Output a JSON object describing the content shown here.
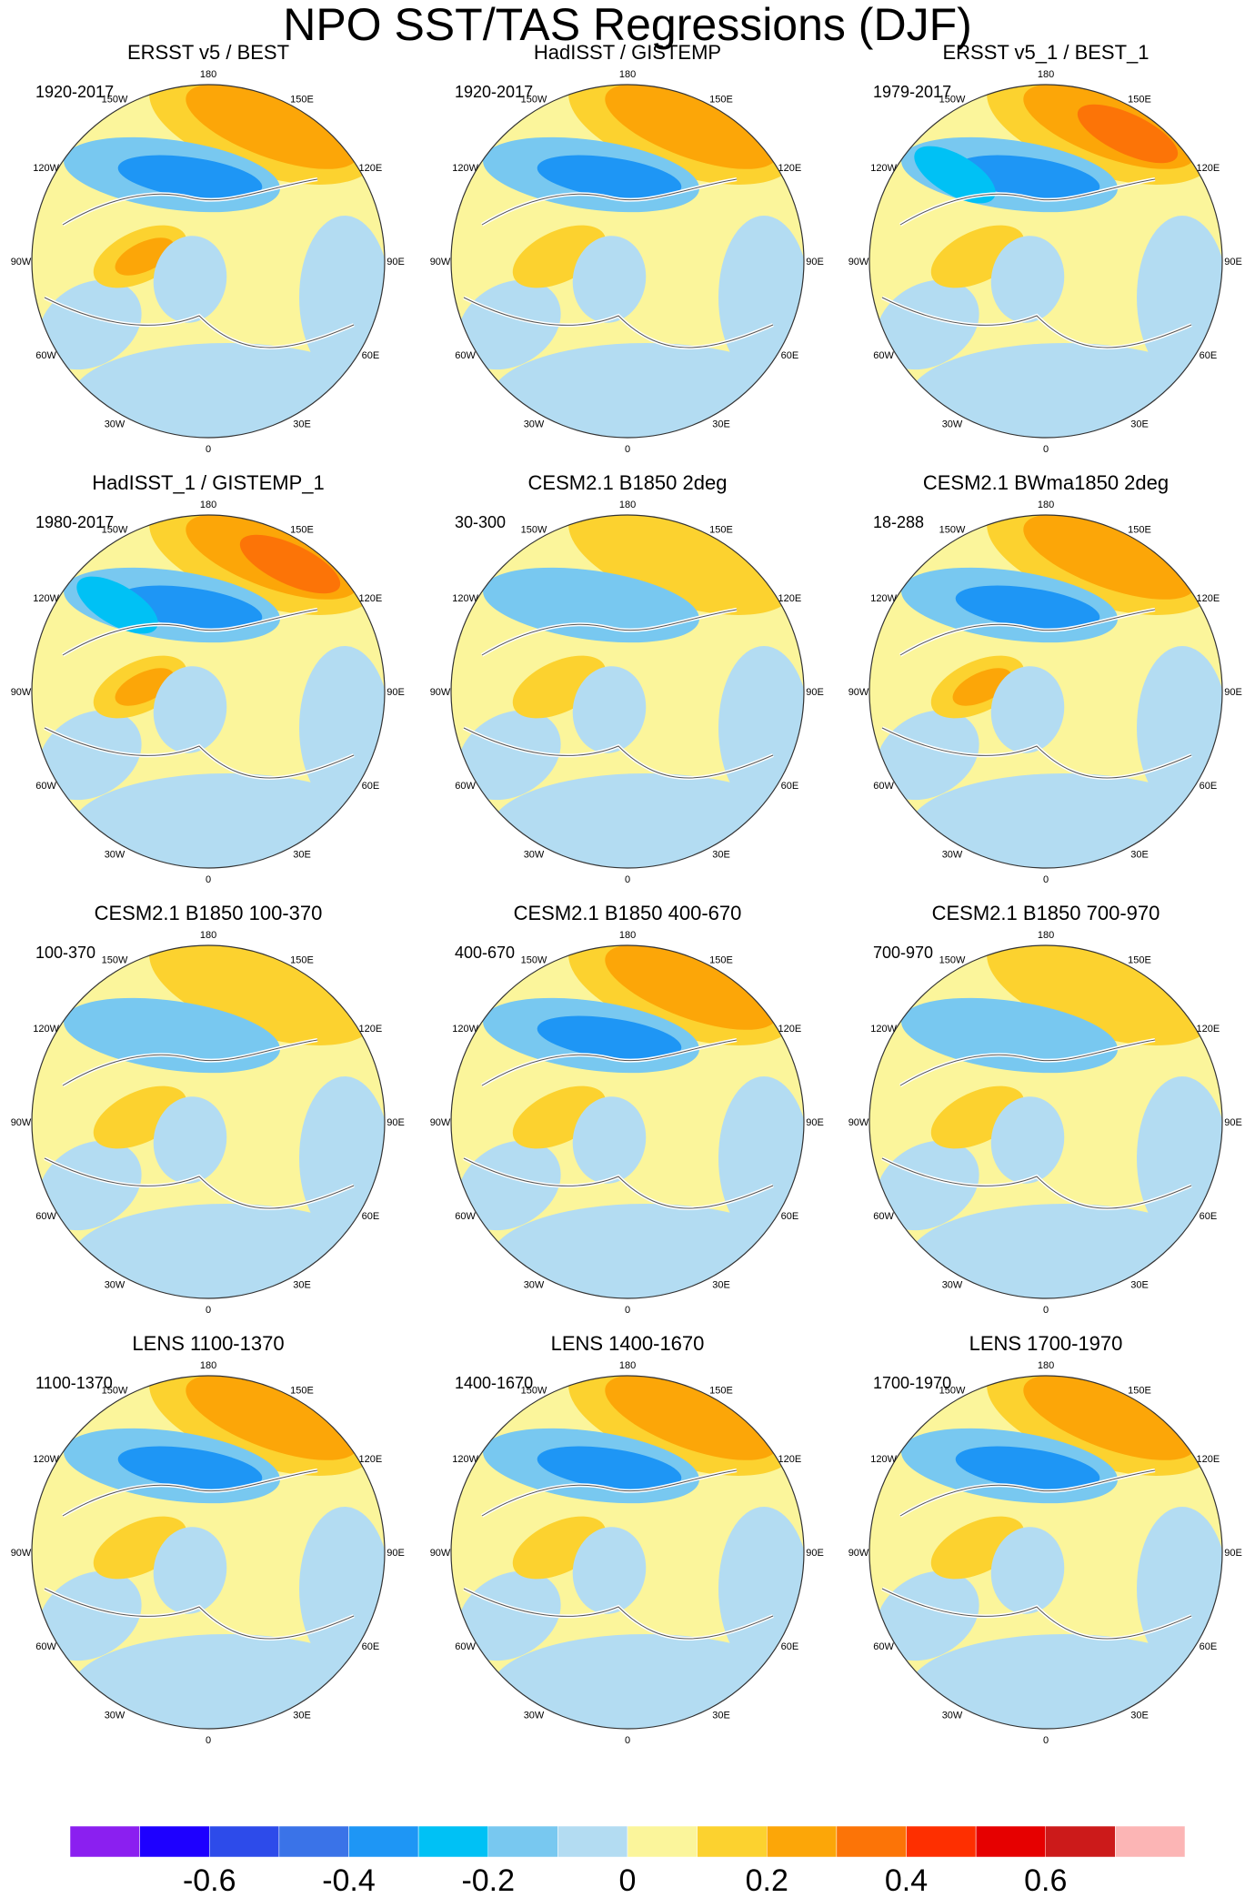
{
  "figure": {
    "title": "NPO SST/TAS Regressions (DJF)",
    "longitude_labels": [
      "180",
      "150E",
      "120E",
      "90E",
      "60E",
      "30E",
      "0",
      "30W",
      "60W",
      "90W",
      "120W",
      "150W"
    ]
  },
  "panels": [
    {
      "title": "ERSST v5 / BEST",
      "period": "1920-2017"
    },
    {
      "title": "HadISST / GISTEMP",
      "period": "1920-2017"
    },
    {
      "title": "ERSST v5_1 / BEST_1",
      "period": "1979-2017"
    },
    {
      "title": "HadISST_1 / GISTEMP_1",
      "period": "1980-2017"
    },
    {
      "title": "CESM2.1 B1850 2deg",
      "period": "30-300"
    },
    {
      "title": "CESM2.1 BWma1850 2deg",
      "period": "18-288"
    },
    {
      "title": "CESM2.1 B1850 100-370",
      "period": "100-370"
    },
    {
      "title": "CESM2.1 B1850 400-670",
      "period": "400-670"
    },
    {
      "title": "CESM2.1 B1850 700-970",
      "period": "700-970"
    },
    {
      "title": "LENS 1100-1370",
      "period": "1100-1370"
    },
    {
      "title": "LENS 1400-1670",
      "period": "1400-1670"
    },
    {
      "title": "LENS 1700-1970",
      "period": "1700-1970"
    }
  ],
  "colorbar": {
    "colors": [
      "#8b1ff0",
      "#1e00ff",
      "#2d4bea",
      "#3a73e8",
      "#1e96f5",
      "#00c1f5",
      "#78c8f0",
      "#b3dcf2",
      "#fbf59b",
      "#fcd22f",
      "#fca608",
      "#fc7407",
      "#fe2f00",
      "#e60000",
      "#cc1a1a",
      "#fcb5b5"
    ],
    "tick_labels": [
      "-0.6",
      "-0.4",
      "-0.2",
      "0",
      "0.2",
      "0.4",
      "0.6"
    ]
  }
}
